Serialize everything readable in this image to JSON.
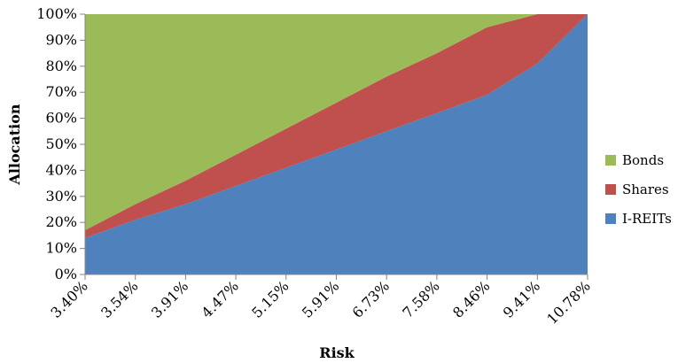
{
  "chart_data": {
    "type": "area",
    "stacked": true,
    "categories": [
      "3.40%",
      "3.54%",
      "3.91%",
      "4.47%",
      "5.15%",
      "5.91%",
      "6.73%",
      "7.58%",
      "8.46%",
      "9.41%",
      "10.78%"
    ],
    "series": [
      {
        "name": "I-REITs",
        "color": "#4f81bd",
        "values": [
          14,
          21,
          27,
          34,
          41,
          48,
          55,
          62,
          69,
          81,
          100
        ]
      },
      {
        "name": "Shares",
        "color": "#c0504d",
        "values": [
          3,
          6,
          9,
          12,
          15,
          18,
          21,
          23,
          26,
          19,
          0
        ]
      },
      {
        "name": "Bonds",
        "color": "#9bbb59",
        "values": [
          83,
          73,
          64,
          54,
          44,
          34,
          24,
          15,
          5,
          0,
          0
        ]
      }
    ],
    "xlabel": "Risk",
    "ylabel": "Allocation",
    "ylim": [
      0,
      100
    ],
    "yticks": [
      "0%",
      "10%",
      "20%",
      "30%",
      "40%",
      "50%",
      "60%",
      "70%",
      "80%",
      "90%",
      "100%"
    ],
    "legend": {
      "position": "right",
      "order": [
        "Bonds",
        "Shares",
        "I-REITs"
      ]
    },
    "grid": false
  }
}
